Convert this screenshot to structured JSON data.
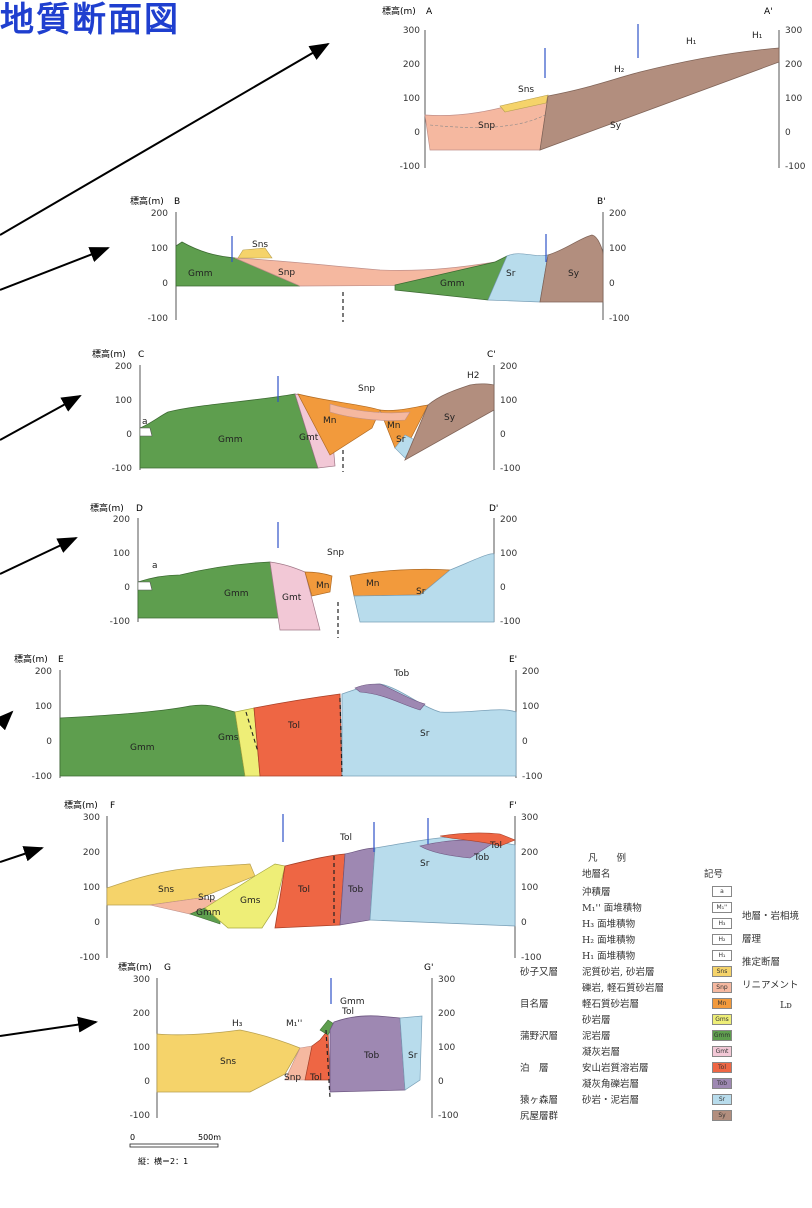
{
  "page_title": "地質断面図",
  "axis": {
    "ylabel": "標高(m)"
  },
  "sections": [
    {
      "id": "A",
      "left": "A",
      "right": "A'",
      "ticks": [
        "300",
        "200",
        "100",
        "0",
        "-100"
      ],
      "units": [
        "Sns",
        "Snp",
        "Sy",
        "H₂",
        "H₁",
        "H₁"
      ]
    },
    {
      "id": "B",
      "left": "B",
      "right": "B'",
      "ticks": [
        "200",
        "100",
        "0",
        "-100"
      ],
      "units": [
        "Sns",
        "Gmm",
        "Snp",
        "Gmm",
        "Sr",
        "Sy"
      ]
    },
    {
      "id": "C",
      "left": "C",
      "right": "C'",
      "ticks": [
        "200",
        "100",
        "0",
        "-100"
      ],
      "units": [
        "a",
        "Gmm",
        "Gmt",
        "Mn",
        "Snp",
        "Mn",
        "Sr",
        "Sy",
        "H2"
      ]
    },
    {
      "id": "D",
      "left": "D",
      "right": "D'",
      "ticks": [
        "200",
        "100",
        "0",
        "-100"
      ],
      "units": [
        "a",
        "Gmm",
        "Gmt",
        "Snp",
        "Mn",
        "Mn",
        "Sr"
      ]
    },
    {
      "id": "E",
      "left": "E",
      "right": "E'",
      "ticks": [
        "200",
        "100",
        "0",
        "-100"
      ],
      "units": [
        "Gmm",
        "Gms",
        "Tol",
        "Tob",
        "Sr"
      ]
    },
    {
      "id": "F",
      "left": "F",
      "right": "F'",
      "ticks": [
        "300",
        "200",
        "100",
        "0",
        "-100"
      ],
      "units": [
        "Sns",
        "Snp",
        "Gmm",
        "Gms",
        "Tol",
        "Tol",
        "Tob",
        "Sr",
        "Tol",
        "Tob"
      ]
    },
    {
      "id": "G",
      "left": "G",
      "right": "G'",
      "ticks": [
        "300",
        "200",
        "100",
        "0",
        "-100"
      ],
      "units": [
        "H₃",
        "M₁''",
        "Gmm",
        "Tol",
        "Sns",
        "Snp",
        "Tol",
        "Tob",
        "Sr"
      ]
    }
  ],
  "scale": {
    "zero": "0",
    "length": "500m",
    "ratio": "縦：横＝2：1"
  },
  "legend": {
    "title": "凡　　例",
    "col_name": "地層名",
    "col_symbol": "記号",
    "rows": [
      {
        "group": "",
        "name": "沖積層",
        "symbol": "a",
        "color": "#ffffff"
      },
      {
        "group": "",
        "name": "M₁'' 面堆積物",
        "symbol": "M₁''",
        "color": "#ffffff"
      },
      {
        "group": "",
        "name": "H₃ 面堆積物",
        "symbol": "H₃",
        "color": "#ffffff"
      },
      {
        "group": "",
        "name": "H₂ 面堆積物",
        "symbol": "H₂",
        "color": "#ffffff"
      },
      {
        "group": "",
        "name": "H₁ 面堆積物",
        "symbol": "H₁",
        "color": "#ffffff"
      },
      {
        "group": "砂子又層",
        "name": "泥質砂岩, 砂岩層",
        "symbol": "Sns",
        "color": "#f5d36a"
      },
      {
        "group": "",
        "name": "礫岩, 軽石質砂岩層",
        "symbol": "Snp",
        "color": "#f5b8a0"
      },
      {
        "group": "目名層",
        "name": "軽石質砂岩層",
        "symbol": "Mn",
        "color": "#f29a3c"
      },
      {
        "group": "",
        "name": "砂岩層",
        "symbol": "Gms",
        "color": "#eeee77"
      },
      {
        "group": "蒲野沢層",
        "name": "泥岩層",
        "symbol": "Gmm",
        "color": "#5e9e4e"
      },
      {
        "group": "",
        "name": "凝灰岩層",
        "symbol": "Gmt",
        "color": "#f2c8d6"
      },
      {
        "group": "泊　層",
        "name": "安山岩質溶岩層",
        "symbol": "Tol",
        "color": "#ee6644"
      },
      {
        "group": "",
        "name": "凝灰角礫岩層",
        "symbol": "Tob",
        "color": "#9e88b2"
      },
      {
        "group": "猿ヶ森層",
        "name": "砂岩・泥岩層",
        "symbol": "Sr",
        "color": "#b8dcec"
      },
      {
        "group": "尻屋層群",
        "name": "",
        "symbol": "Sy",
        "color": "#b28e7e"
      }
    ],
    "right_items": [
      "地層・岩相境",
      "層理",
      "推定断層",
      "リニアメント",
      "Lᴅ"
    ]
  }
}
